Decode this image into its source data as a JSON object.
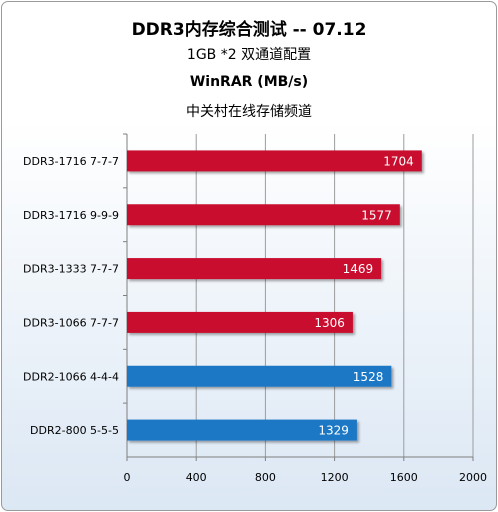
{
  "chart_data": {
    "type": "bar",
    "orientation": "horizontal",
    "title": "DDR3内存综合测试 -- 07.12",
    "subtitle": "1GB *2 双通道配置",
    "benchmark": "WinRAR (MB/s)",
    "source": "中关村在线存储频道",
    "categories": [
      "DDR3-1716 7-7-7",
      "DDR3-1716 9-9-9",
      "DDR3-1333 7-7-7",
      "DDR3-1066 7-7-7",
      "DDR2-1066 4-4-4",
      "DDR2-800 5-5-5"
    ],
    "values": [
      1704,
      1577,
      1469,
      1306,
      1528,
      1329
    ],
    "colors": [
      "#c8102e",
      "#c8102e",
      "#c8102e",
      "#c8102e",
      "#1f77c4",
      "#1f77c4"
    ],
    "xlim": [
      0,
      2000
    ],
    "xticks": [
      0,
      400,
      800,
      1200,
      1600,
      2000
    ],
    "grid": true
  }
}
